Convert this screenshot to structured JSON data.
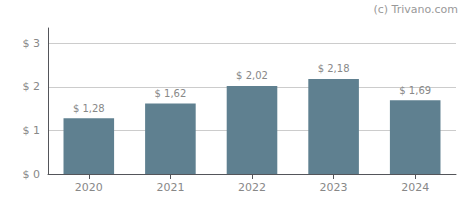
{
  "chart_data": {
    "type": "bar",
    "categories": [
      "2020",
      "2021",
      "2022",
      "2023",
      "2024"
    ],
    "values": [
      1.28,
      1.62,
      2.02,
      2.18,
      1.69
    ],
    "value_labels": [
      "$ 1,28",
      "$ 1,62",
      "$ 2,02",
      "$ 2,18",
      "$ 1,69"
    ],
    "data_labels": true,
    "color": "#5f8090",
    "ylim": [
      0,
      3.35
    ],
    "yticks": [
      {
        "value": 0,
        "label": "$ 0"
      },
      {
        "value": 1,
        "label": "$ 1"
      },
      {
        "value": 2,
        "label": "$ 2"
      },
      {
        "value": 3,
        "label": "$ 3"
      }
    ],
    "grid": true,
    "annotations": [
      "(c) Trivano.com"
    ]
  }
}
